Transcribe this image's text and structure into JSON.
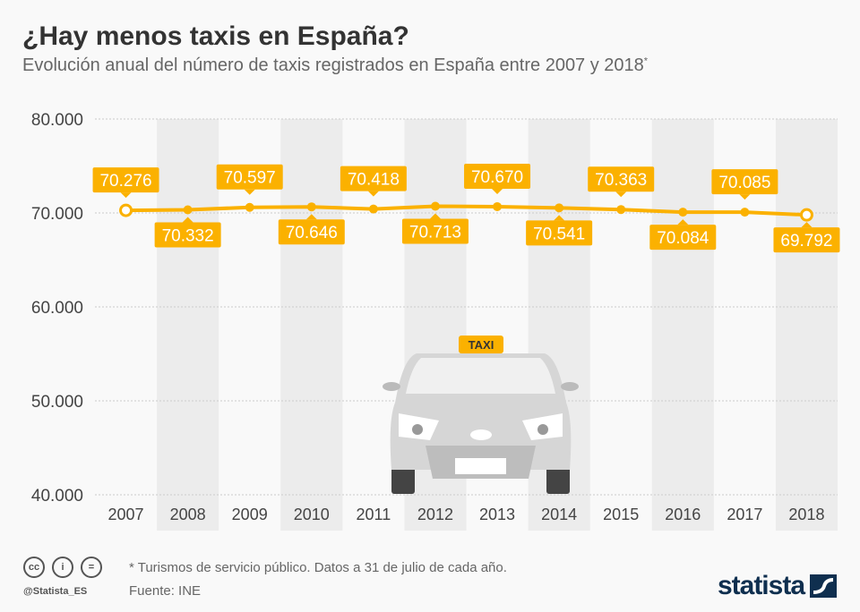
{
  "header": {
    "title": "¿Hay menos taxis en España?",
    "subtitle": "Evolución anual del número de taxis registrados en España entre 2007 y 2018",
    "subtitle_mark": "*"
  },
  "chart_data": {
    "type": "line",
    "categories": [
      "2007",
      "2008",
      "2009",
      "2010",
      "2011",
      "2012",
      "2013",
      "2014",
      "2015",
      "2016",
      "2017",
      "2018"
    ],
    "values": [
      70276,
      70332,
      70597,
      70646,
      70418,
      70713,
      70670,
      70541,
      70363,
      70084,
      70085,
      69792
    ],
    "data_labels": [
      "70.276",
      "70.332",
      "70.597",
      "70.646",
      "70.418",
      "70.713",
      "70.670",
      "70.541",
      "70.363",
      "70.084",
      "70.085",
      "69.792"
    ],
    "ylim": [
      40000,
      80000
    ],
    "yticks": [
      40000,
      50000,
      60000,
      70000,
      80000
    ],
    "ytick_labels": [
      "40.000",
      "50.000",
      "60.000",
      "70.000",
      "80.000"
    ],
    "grid": true,
    "colors": {
      "line": "#fbb100",
      "band": "#ececec"
    },
    "illustration_text": "TAXI"
  },
  "footer": {
    "note": "* Turismos de servicio público. Datos a 31 de julio de cada año.",
    "source": "Fuente: INE",
    "handle": "@Statista_ES",
    "logo": "statista",
    "cc_icons": [
      "cc",
      "i",
      "="
    ]
  }
}
